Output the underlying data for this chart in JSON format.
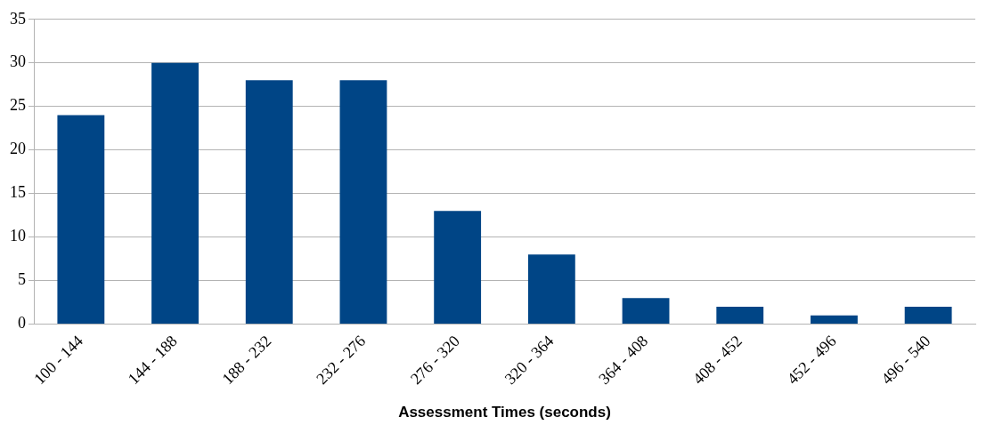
{
  "chart_data": {
    "type": "bar",
    "xlabel": "Assessment Times (seconds)",
    "categories": [
      "100 - 144",
      "144 - 188",
      "188 - 232",
      "232 - 276",
      "276 - 320",
      "320 - 364",
      "364 - 408",
      "408 - 452",
      "452 - 496",
      "496 - 540"
    ],
    "values": [
      24,
      30,
      28,
      28,
      13,
      8,
      3,
      2,
      1,
      2
    ],
    "color": "#004586",
    "ylim": [
      0,
      35
    ],
    "yticks": [
      0,
      5,
      10,
      15,
      20,
      25,
      30,
      35
    ],
    "grid": "y",
    "legend": false
  }
}
